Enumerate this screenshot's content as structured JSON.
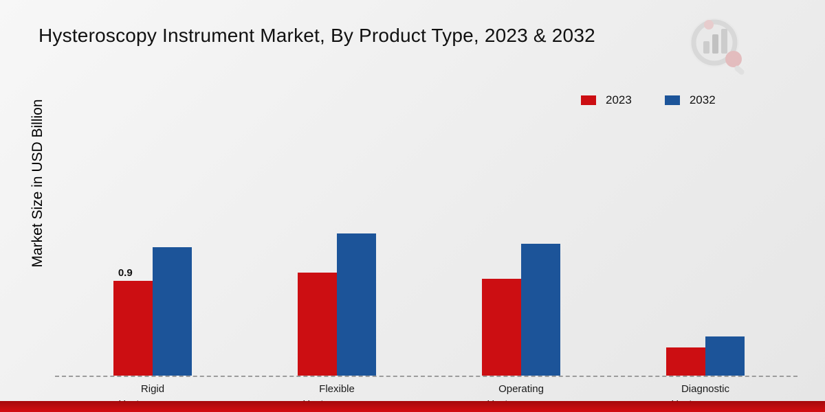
{
  "page": {
    "title": "Hysteroscopy Instrument Market, By Product Type, 2023 & 2032",
    "ylabel": "Market Size in USD Billion"
  },
  "legend": {
    "items": [
      {
        "label": "2023",
        "color": "#cc0e12"
      },
      {
        "label": "2032",
        "color": "#1c5499"
      }
    ]
  },
  "chart_data": {
    "type": "bar",
    "title": "Hysteroscopy Instrument Market, By Product Type, 2023 & 2032",
    "xlabel": "",
    "ylabel": "Market Size in USD Billion",
    "categories": [
      [
        "Rigid",
        "Hysteroscopes"
      ],
      [
        "Flexible",
        "Hysteroscopes"
      ],
      [
        "Operating",
        "Hysteroscopes"
      ],
      [
        "Diagnostic",
        "Hysteroscopes"
      ]
    ],
    "series": [
      {
        "name": "2023",
        "color": "#cc0e12",
        "values": [
          0.9,
          0.98,
          0.92,
          0.27
        ]
      },
      {
        "name": "2032",
        "color": "#1c5499",
        "values": [
          1.22,
          1.35,
          1.25,
          0.37
        ]
      }
    ],
    "ylim": [
      0,
      3
    ],
    "grid": false,
    "legend_position": "top-right",
    "annotations": [
      {
        "category_index": 0,
        "series_index": 0,
        "text": "0.9"
      }
    ]
  }
}
